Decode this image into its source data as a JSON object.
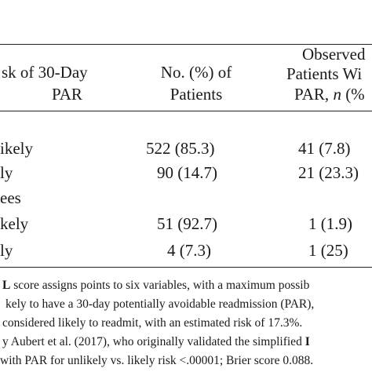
{
  "table": {
    "header": {
      "risk_line1": "sk of 30-Day",
      "risk_line2": "PAR",
      "count_line1": "No. (%) of",
      "count_line2": "Patients",
      "obs_line1": "Observed",
      "obs_line2": "Patients Wi",
      "obs_line3_prefix": "PAR, ",
      "obs_line3_italic": "n",
      "obs_line3_suffix": " (%"
    },
    "rows": [
      {
        "label": "ikely",
        "count": "522 (85.3)",
        "observed": "41 (7.8)"
      },
      {
        "label": "ly",
        "count": "90 (14.7)",
        "observed": "21 (23.3)"
      },
      {
        "label": "ees",
        "count": "",
        "observed": ""
      },
      {
        "label": "kely",
        "count": "51 (92.7)",
        "observed": "1 (1.9)"
      },
      {
        "label": "ly",
        "count": "4 (7.3)",
        "observed": "1 (25)"
      }
    ]
  },
  "footnote": {
    "line1_bold": "L",
    "line1_rest": " score assigns points to six variables, with a maximum possib",
    "line2": "kely to have a 30-day potentially avoidable readmission (PAR),",
    "line3": "considered likely to readmit, with an estimated risk of 17.3%.",
    "line4_start": "y Aubert et al. (2017), who originally validated the simplified ",
    "line4_bold": "I",
    "line5": "with PAR for unlikely vs. likely risk <.00001; Brier score 0.088."
  }
}
